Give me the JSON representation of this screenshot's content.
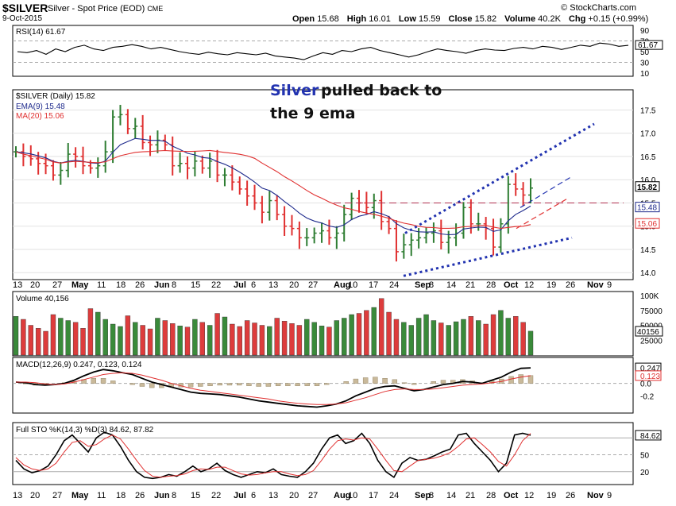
{
  "header": {
    "symbol": "$SILVER",
    "subtitle": "Silver - Spot Price (EOD)",
    "exchange": "CME",
    "date": "9-Oct-2015",
    "brand": "© StockCharts.com",
    "open_label": "Open",
    "open": "15.68",
    "high_label": "High",
    "high": "16.01",
    "low_label": "Low",
    "low": "15.59",
    "close_label": "Close",
    "close": "15.82",
    "volume_label": "Volume",
    "volume": "40.2K",
    "chg_label": "Chg",
    "chg": "+0.15 (+0.99%)"
  },
  "colors": {
    "up": "#2e7d32",
    "down": "#e03030",
    "ema": "#1e2a8c",
    "ma": "#e03030",
    "annotation_blue": "#2233b0",
    "volume_up": "#3a8a3a",
    "volume_down": "#dd3c3c",
    "histogram": "#c9b99a"
  },
  "chart_data": [
    {
      "type": "line",
      "panel": "rsi",
      "title": "RSI(14) 61.67",
      "y_ticks": [
        "90",
        "70",
        "50",
        "30",
        "10"
      ],
      "ylim": [
        10,
        90
      ],
      "last_value_label": "61.67",
      "values": [
        50,
        48,
        52,
        45,
        55,
        50,
        58,
        62,
        55,
        52,
        58,
        60,
        63,
        60,
        55,
        58,
        54,
        50,
        47,
        45,
        49,
        46,
        44,
        48,
        46,
        44,
        47,
        42,
        40,
        38,
        35,
        42,
        48,
        45,
        52,
        50,
        55,
        58,
        52,
        48,
        44,
        40,
        44,
        50,
        55,
        52,
        50,
        47,
        52,
        55,
        53,
        52,
        56,
        58,
        55,
        60,
        58,
        54,
        58,
        62,
        60,
        66,
        64,
        60,
        61.67
      ]
    },
    {
      "type": "candlestick",
      "panel": "price",
      "title": "$SILVER (Daily) 15.82",
      "series": [
        {
          "name": "EMA(9) 15.48"
        },
        {
          "name": "MA(20) 15.06"
        }
      ],
      "y_ticks": [
        "17.5",
        "17.0",
        "16.5",
        "16.0",
        "15.5",
        "15.0",
        "14.5",
        "14.0"
      ],
      "ylim": [
        13.85,
        17.85
      ],
      "x_tick_labels": [
        "13",
        "20",
        "27",
        "May",
        "11",
        "18",
        "26",
        "Jun",
        "8",
        "15",
        "22",
        "Jul",
        "6",
        "13",
        "20",
        "27",
        "Aug",
        "10",
        "17",
        "24",
        "Sep",
        "8",
        "14",
        "21",
        "28",
        "Oct",
        "12",
        "19",
        "26",
        "Nov",
        "9"
      ],
      "close": [
        16.6,
        16.5,
        16.45,
        16.35,
        16.3,
        16.1,
        16.2,
        16.55,
        16.5,
        16.3,
        16.25,
        16.3,
        16.6,
        17.35,
        17.4,
        17.1,
        17.15,
        16.8,
        16.75,
        16.85,
        16.75,
        16.3,
        16.35,
        16.25,
        16.4,
        16.25,
        16.4,
        16.1,
        16.1,
        15.95,
        15.8,
        15.65,
        15.5,
        15.3,
        15.55,
        15.25,
        15.0,
        14.95,
        14.75,
        14.75,
        14.85,
        14.9,
        14.75,
        14.85,
        15.25,
        15.6,
        15.5,
        15.4,
        15.55,
        15.1,
        14.95,
        14.45,
        14.6,
        14.7,
        14.75,
        14.85,
        14.9,
        14.65,
        14.75,
        14.85,
        15.4,
        15.05,
        15.05,
        14.95,
        14.55,
        15.05,
        15.9,
        15.8,
        15.67,
        15.82
      ],
      "volume_values": [
        65,
        60,
        50,
        45,
        40,
        68,
        62,
        58,
        55,
        45,
        78,
        72,
        60,
        52,
        48,
        66,
        55,
        50,
        44,
        62,
        58,
        53,
        49,
        47,
        60,
        55,
        50,
        70,
        64,
        52,
        48,
        58,
        54,
        50,
        48,
        62,
        57,
        53,
        50,
        60,
        55,
        49,
        47,
        58,
        62,
        68,
        70,
        75,
        80,
        95,
        72,
        60,
        55,
        50,
        62,
        68,
        58,
        54,
        50,
        56,
        60,
        65,
        58,
        52,
        68,
        75,
        62,
        65,
        55,
        40.156
      ],
      "volume_label": "Volume 40,156",
      "volume_ticks": [
        "100K",
        "75000",
        "50000",
        "25000"
      ],
      "volume_last_label": "40156",
      "trend_lines": [
        {
          "name": "upper-channel",
          "from": [
            14.9,
            0
          ],
          "to": [
            17.2,
            1
          ]
        },
        {
          "name": "lower-channel",
          "from": [
            13.9,
            0
          ],
          "to": [
            14.75,
            1
          ]
        },
        {
          "name": "resistance",
          "value": 15.5
        }
      ],
      "last_labels": [
        "15.82",
        "15.48",
        "15.06"
      ]
    },
    {
      "type": "line",
      "panel": "macd",
      "title": "MACD(12,26,9) 0.247, 0.123, 0.124",
      "y_ticks": [
        "0.247",
        "0.123",
        "0.0",
        "-0.2"
      ],
      "ylim": [
        -0.45,
        0.35
      ],
      "series": [
        {
          "name": "MACD",
          "values": [
            0.02,
            0.01,
            -0.02,
            -0.03,
            -0.02,
            0.0,
            0.05,
            0.12,
            0.18,
            0.22,
            0.2,
            0.17,
            0.14,
            0.08,
            0.02,
            -0.02,
            -0.06,
            -0.1,
            -0.14,
            -0.16,
            -0.17,
            -0.18,
            -0.2,
            -0.22,
            -0.25,
            -0.28,
            -0.3,
            -0.32,
            -0.34,
            -0.36,
            -0.37,
            -0.38,
            -0.36,
            -0.33,
            -0.28,
            -0.2,
            -0.14,
            -0.08,
            -0.05,
            -0.04,
            -0.08,
            -0.12,
            -0.1,
            -0.06,
            -0.02,
            0.0,
            0.03,
            0.02,
            0.0,
            0.05,
            0.1,
            0.18,
            0.24,
            0.247
          ]
        },
        {
          "name": "Signal",
          "values": [
            0.02,
            0.02,
            0.01,
            -0.01,
            -0.02,
            -0.01,
            0.02,
            0.06,
            0.1,
            0.14,
            0.16,
            0.17,
            0.16,
            0.13,
            0.09,
            0.05,
            0.0,
            -0.04,
            -0.08,
            -0.11,
            -0.13,
            -0.15,
            -0.17,
            -0.19,
            -0.21,
            -0.23,
            -0.25,
            -0.28,
            -0.3,
            -0.32,
            -0.33,
            -0.34,
            -0.34,
            -0.33,
            -0.31,
            -0.27,
            -0.23,
            -0.18,
            -0.13,
            -0.1,
            -0.09,
            -0.1,
            -0.1,
            -0.09,
            -0.07,
            -0.05,
            -0.03,
            -0.02,
            -0.01,
            0.01,
            0.03,
            0.07,
            0.1,
            0.123
          ]
        }
      ]
    },
    {
      "type": "line",
      "panel": "stochastic",
      "title": "Full STO %K(14,3) %D(3) 84.62, 87.82",
      "y_ticks": [
        "84.62",
        "50",
        "20"
      ],
      "ylim": [
        0,
        100
      ],
      "series": [
        {
          "name": "%K",
          "values": [
            40,
            25,
            18,
            22,
            30,
            50,
            75,
            85,
            70,
            55,
            80,
            90,
            85,
            65,
            40,
            20,
            10,
            8,
            10,
            15,
            12,
            20,
            30,
            20,
            25,
            35,
            22,
            15,
            10,
            15,
            20,
            18,
            25,
            15,
            12,
            10,
            20,
            35,
            60,
            80,
            85,
            70,
            75,
            88,
            70,
            40,
            20,
            10,
            35,
            45,
            40,
            42,
            48,
            55,
            60,
            85,
            88,
            70,
            55,
            40,
            20,
            35,
            85,
            88,
            84.62
          ]
        },
        {
          "name": "%D",
          "values": [
            45,
            32,
            25,
            22,
            25,
            35,
            55,
            72,
            75,
            65,
            68,
            78,
            85,
            78,
            60,
            40,
            22,
            12,
            10,
            12,
            13,
            16,
            22,
            25,
            24,
            28,
            28,
            22,
            16,
            14,
            15,
            18,
            20,
            20,
            16,
            13,
            15,
            22,
            40,
            60,
            75,
            78,
            76,
            80,
            78,
            60,
            40,
            22,
            20,
            30,
            40,
            42,
            44,
            48,
            54,
            65,
            78,
            80,
            68,
            55,
            38,
            30,
            50,
            75,
            87.82
          ]
        }
      ]
    }
  ],
  "annotation": {
    "line1_blue": "Silver",
    "line1_rest": " pulled back to",
    "line2": "the 9 ema"
  }
}
